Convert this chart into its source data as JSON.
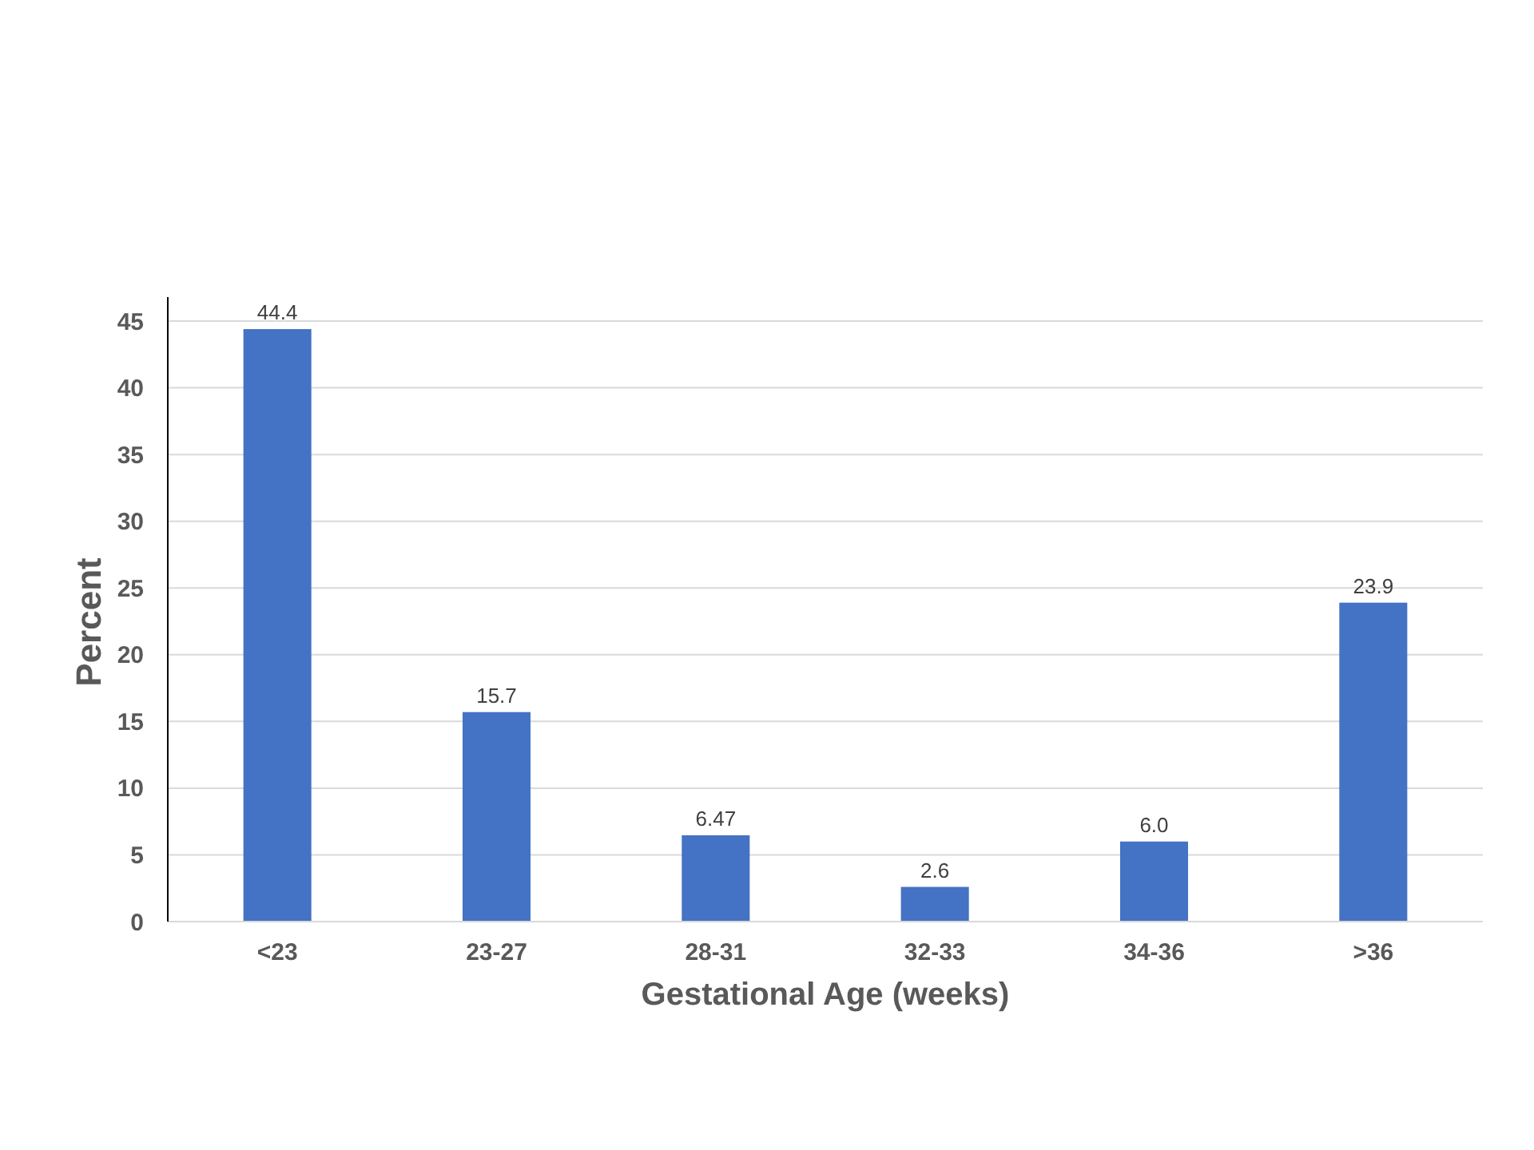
{
  "chart_data": {
    "type": "bar",
    "xlabel": "Gestational Age (weeks)",
    "ylabel": "Percent",
    "categories": [
      "<23",
      "23-27",
      "28-31",
      "32-33",
      "34-36",
      ">36"
    ],
    "values": [
      44.4,
      15.7,
      6.47,
      2.6,
      6.0,
      23.9
    ],
    "value_labels": [
      "44.4",
      "15.7",
      "6.47",
      "2.6",
      "6.0",
      "23.9"
    ],
    "color": "#4472c4",
    "ylim": [
      0,
      46.8
    ],
    "yticks": [
      0,
      5,
      10,
      15,
      20,
      25,
      30,
      35,
      40,
      45
    ],
    "grid": "y"
  }
}
